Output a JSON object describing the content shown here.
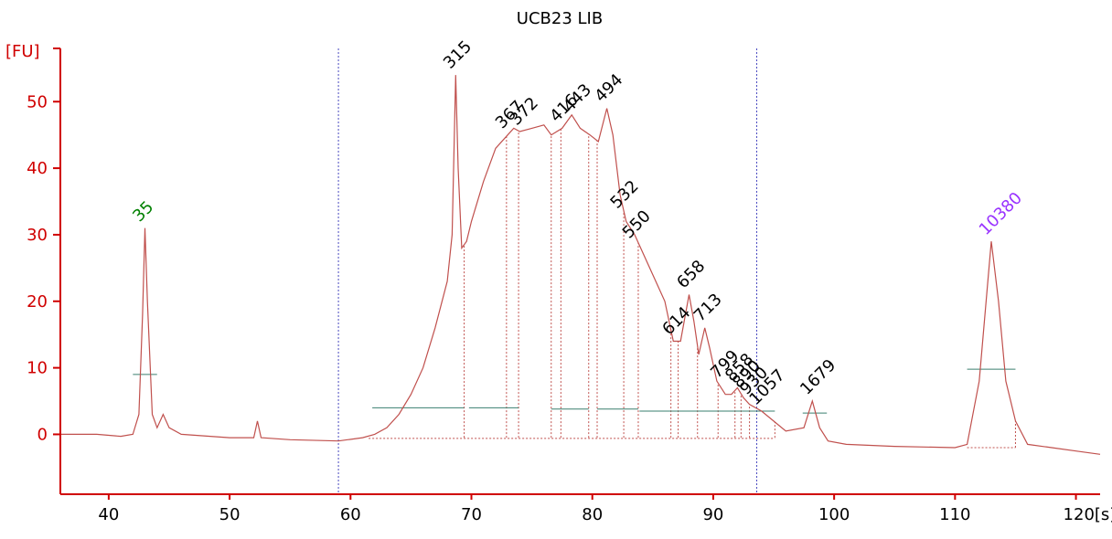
{
  "chart_data": {
    "type": "line",
    "title": "UCB23 LIB",
    "ylabel": "[FU]",
    "xlabel": "[s]",
    "xlim": [
      36,
      122
    ],
    "ylim": [
      -9,
      58
    ],
    "x_ticks": [
      40,
      50,
      60,
      70,
      80,
      90,
      100,
      110,
      120
    ],
    "x_tick_labels": [
      "40",
      "50",
      "60",
      "70",
      "80",
      "90",
      "100",
      "110",
      "120[s]"
    ],
    "y_ticks": [
      0,
      10,
      20,
      30,
      40,
      50
    ],
    "y_tick_labels": [
      "0",
      "10",
      "20",
      "30",
      "40",
      "50"
    ],
    "grid": false,
    "colors": {
      "trace": "#c0504d",
      "axis": "#d00000",
      "marker_lower": "#008000",
      "marker_upper": "#9933ff",
      "region_line": "#3a7f6f",
      "range_line": "#4a4ac0",
      "peak_label": "#000000"
    },
    "range_lines_x": [
      59,
      93.6
    ],
    "series": [
      {
        "points": [
          [
            36,
            0
          ],
          [
            39,
            0
          ],
          [
            41,
            -0.3
          ],
          [
            42,
            0
          ],
          [
            42.5,
            3
          ],
          [
            42.8,
            18
          ],
          [
            43.0,
            31
          ],
          [
            43.2,
            20
          ],
          [
            43.6,
            3
          ],
          [
            44.0,
            1
          ],
          [
            44.5,
            3
          ],
          [
            45.0,
            1
          ],
          [
            46,
            0
          ],
          [
            50,
            -0.5
          ],
          [
            52,
            -0.5
          ],
          [
            52.3,
            2
          ],
          [
            52.6,
            -0.5
          ],
          [
            55,
            -0.8
          ],
          [
            59,
            -1
          ],
          [
            61,
            -0.5
          ],
          [
            62,
            0
          ],
          [
            63,
            1
          ],
          [
            64,
            3
          ],
          [
            65,
            6
          ],
          [
            66,
            10
          ],
          [
            67,
            16
          ],
          [
            68,
            23
          ],
          [
            68.4,
            30
          ],
          [
            68.7,
            54
          ],
          [
            68.9,
            40
          ],
          [
            69.2,
            28
          ],
          [
            69.6,
            29
          ],
          [
            70,
            32
          ],
          [
            71,
            38
          ],
          [
            72,
            43
          ],
          [
            73,
            45
          ],
          [
            73.5,
            46
          ],
          [
            74,
            45.5
          ],
          [
            75,
            46
          ],
          [
            76,
            46.5
          ],
          [
            76.6,
            45
          ],
          [
            77.5,
            46
          ],
          [
            78.3,
            48
          ],
          [
            79,
            46
          ],
          [
            79.8,
            45
          ],
          [
            80.5,
            44
          ],
          [
            81.2,
            49
          ],
          [
            81.7,
            45
          ],
          [
            82.3,
            36
          ],
          [
            82.8,
            32
          ],
          [
            83.5,
            30
          ],
          [
            84,
            28
          ],
          [
            85,
            24
          ],
          [
            86,
            20
          ],
          [
            86.7,
            14
          ],
          [
            87.3,
            14
          ],
          [
            88,
            21
          ],
          [
            88.4,
            17
          ],
          [
            88.8,
            12
          ],
          [
            89.3,
            16
          ],
          [
            89.7,
            13
          ],
          [
            90.3,
            8
          ],
          [
            91,
            6
          ],
          [
            91.5,
            6
          ],
          [
            92,
            7
          ],
          [
            92.5,
            5.5
          ],
          [
            93,
            4.5
          ],
          [
            94,
            3.5
          ],
          [
            95,
            2
          ],
          [
            96,
            0.5
          ],
          [
            97.5,
            1
          ],
          [
            98.2,
            5
          ],
          [
            98.8,
            1
          ],
          [
            99.5,
            -1
          ],
          [
            101,
            -1.5
          ],
          [
            105,
            -1.8
          ],
          [
            110,
            -2
          ],
          [
            111,
            -1.5
          ],
          [
            112,
            8
          ],
          [
            113,
            29
          ],
          [
            113.6,
            20
          ],
          [
            114.2,
            8
          ],
          [
            115,
            2
          ],
          [
            116,
            -1.5
          ],
          [
            118,
            -2
          ],
          [
            120,
            -2.5
          ],
          [
            122,
            -3
          ]
        ]
      }
    ],
    "peak_labels": [
      {
        "text": "35",
        "x": 43.0,
        "y": 31,
        "color": "#008000"
      },
      {
        "text": "315",
        "x": 68.7,
        "y": 54,
        "color": "#000000"
      },
      {
        "text": "367",
        "x": 73.0,
        "y": 45,
        "color": "#000000"
      },
      {
        "text": "372",
        "x": 74.2,
        "y": 45.5,
        "color": "#000000"
      },
      {
        "text": "416",
        "x": 77.5,
        "y": 46,
        "color": "#000000"
      },
      {
        "text": "443",
        "x": 78.6,
        "y": 47.5,
        "color": "#000000"
      },
      {
        "text": "494",
        "x": 81.2,
        "y": 49,
        "color": "#000000"
      },
      {
        "text": "532",
        "x": 82.5,
        "y": 33,
        "color": "#000000"
      },
      {
        "text": "550",
        "x": 83.5,
        "y": 28.5,
        "color": "#000000"
      },
      {
        "text": "614",
        "x": 86.8,
        "y": 14,
        "color": "#000000"
      },
      {
        "text": "658",
        "x": 88.0,
        "y": 21,
        "color": "#000000"
      },
      {
        "text": "713",
        "x": 89.4,
        "y": 16,
        "color": "#000000"
      },
      {
        "text": "799",
        "x": 90.8,
        "y": 7.5,
        "color": "#000000"
      },
      {
        "text": "858",
        "x": 92.0,
        "y": 7,
        "color": "#000000"
      },
      {
        "text": "890",
        "x": 92.6,
        "y": 6,
        "color": "#000000"
      },
      {
        "text": "930",
        "x": 93.2,
        "y": 5,
        "color": "#000000"
      },
      {
        "text": "1057",
        "x": 94.0,
        "y": 3.5,
        "color": "#000000"
      },
      {
        "text": "1679",
        "x": 98.2,
        "y": 5,
        "color": "#000000"
      },
      {
        "text": "10380",
        "x": 113.0,
        "y": 29,
        "color": "#9933ff"
      }
    ],
    "drop_lines_x": [
      69.4,
      72.9,
      73.9,
      76.6,
      77.4,
      79.7,
      80.4,
      82.6,
      83.8,
      86.5,
      87.1,
      88.7,
      90.4,
      91.8,
      92.3,
      93.0,
      95.1,
      115.0
    ],
    "region_lines": [
      {
        "x1": 42,
        "x2": 44,
        "y": 9
      },
      {
        "x1": 61.8,
        "x2": 69.4,
        "y": 4
      },
      {
        "x1": 69.8,
        "x2": 73.9,
        "y": 4
      },
      {
        "x1": 76.6,
        "x2": 79.7,
        "y": 3.8
      },
      {
        "x1": 80.4,
        "x2": 83.8,
        "y": 3.8
      },
      {
        "x1": 83.9,
        "x2": 95.1,
        "y": 3.5
      },
      {
        "x1": 97.4,
        "x2": 99.4,
        "y": 3.2
      },
      {
        "x1": 111.0,
        "x2": 115.0,
        "y": 9.8
      }
    ]
  }
}
